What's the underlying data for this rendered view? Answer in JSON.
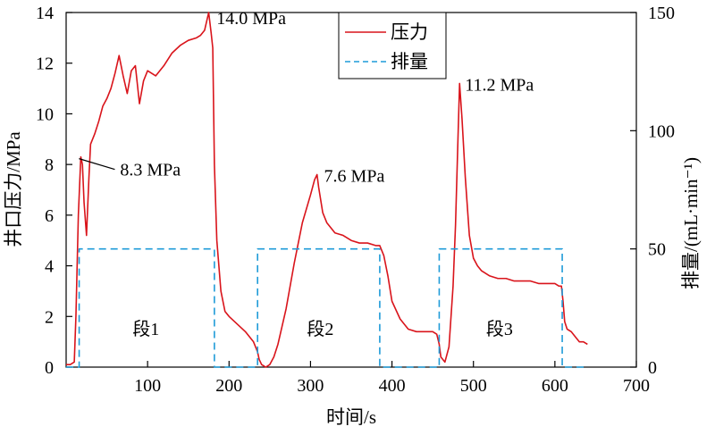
{
  "chart_data": {
    "type": "line",
    "title": "",
    "xlabel": "时间/s",
    "ylabel_left": "井口压力/MPa",
    "ylabel_right": "排量/(mL·min⁻¹)",
    "xlim": [
      0,
      700
    ],
    "ylim_left": [
      0,
      14
    ],
    "ylim_right": [
      0,
      150
    ],
    "x_ticks": [
      "100",
      "200",
      "300",
      "400",
      "500",
      "600",
      "700"
    ],
    "y_left_ticks": [
      "0",
      "2",
      "4",
      "6",
      "8",
      "10",
      "12",
      "14"
    ],
    "y_right_ticks": [
      "0",
      "50",
      "100",
      "150"
    ],
    "grid": false,
    "legend_position": "top-center",
    "series": [
      {
        "name": "压力",
        "axis": "left",
        "color": "#d9141b",
        "style": "solid",
        "x": [
          0,
          5,
          10,
          12,
          15,
          18,
          20,
          22,
          25,
          28,
          30,
          35,
          40,
          45,
          50,
          55,
          60,
          65,
          70,
          75,
          80,
          85,
          90,
          95,
          100,
          110,
          120,
          130,
          140,
          150,
          160,
          165,
          170,
          175,
          178,
          180,
          182,
          185,
          190,
          195,
          200,
          210,
          220,
          230,
          235,
          237,
          240,
          245,
          250,
          255,
          260,
          270,
          280,
          290,
          300,
          305,
          308,
          310,
          315,
          320,
          330,
          340,
          350,
          360,
          370,
          380,
          385,
          390,
          395,
          400,
          410,
          420,
          430,
          440,
          450,
          455,
          458,
          460,
          465,
          470,
          475,
          478,
          481,
          483,
          486,
          490,
          495,
          500,
          505,
          510,
          520,
          530,
          540,
          550,
          560,
          570,
          580,
          590,
          600,
          605,
          608,
          610,
          612,
          615,
          620,
          625,
          630,
          635,
          640
        ],
        "y": [
          0.1,
          0.1,
          0.2,
          2.0,
          6.0,
          8.3,
          8.0,
          6.5,
          5.2,
          7.5,
          8.8,
          9.2,
          9.7,
          10.3,
          10.6,
          11.0,
          11.6,
          12.3,
          11.5,
          10.8,
          11.7,
          11.9,
          10.4,
          11.3,
          11.7,
          11.5,
          11.9,
          12.4,
          12.7,
          12.9,
          13.0,
          13.1,
          13.3,
          14.0,
          13.2,
          12.6,
          8.0,
          5.0,
          3.0,
          2.2,
          2.0,
          1.7,
          1.4,
          1.0,
          0.6,
          0.3,
          0.1,
          0.0,
          0.1,
          0.4,
          0.9,
          2.3,
          4.1,
          5.7,
          6.8,
          7.4,
          7.6,
          7.1,
          6.1,
          5.7,
          5.3,
          5.2,
          5.0,
          4.9,
          4.9,
          4.8,
          4.8,
          4.4,
          3.6,
          2.6,
          1.9,
          1.5,
          1.4,
          1.4,
          1.4,
          1.3,
          0.9,
          0.4,
          0.2,
          0.8,
          3.2,
          5.6,
          9.0,
          11.2,
          9.8,
          7.5,
          5.2,
          4.3,
          4.0,
          3.8,
          3.6,
          3.5,
          3.5,
          3.4,
          3.4,
          3.4,
          3.3,
          3.3,
          3.3,
          3.2,
          3.2,
          2.6,
          1.8,
          1.5,
          1.4,
          1.2,
          1.0,
          1.0,
          0.9
        ]
      },
      {
        "name": "排量",
        "axis": "right",
        "color": "#1f9bd8",
        "style": "dashed",
        "x": [
          0,
          16,
          16,
          182,
          182,
          235,
          235,
          385,
          385,
          458,
          458,
          609,
          609,
          640
        ],
        "y": [
          0,
          0,
          50,
          50,
          0,
          0,
          50,
          50,
          0,
          0,
          50,
          50,
          0,
          0
        ]
      }
    ],
    "annotations": [
      {
        "text": "14.0 MPa",
        "x": 178,
        "y": 14.0,
        "position": "right"
      },
      {
        "text": "8.3 MPa",
        "x": 18,
        "y": 8.3,
        "position": "leader-right"
      },
      {
        "text": "7.6 MPa",
        "x": 310,
        "y": 7.6,
        "position": "right"
      },
      {
        "text": "11.2 MPa",
        "x": 483,
        "y": 11.2,
        "position": "right"
      }
    ],
    "segment_labels": [
      {
        "text": "段1",
        "x": 98
      },
      {
        "text": "段2",
        "x": 312
      },
      {
        "text": "段3",
        "x": 532
      }
    ]
  }
}
